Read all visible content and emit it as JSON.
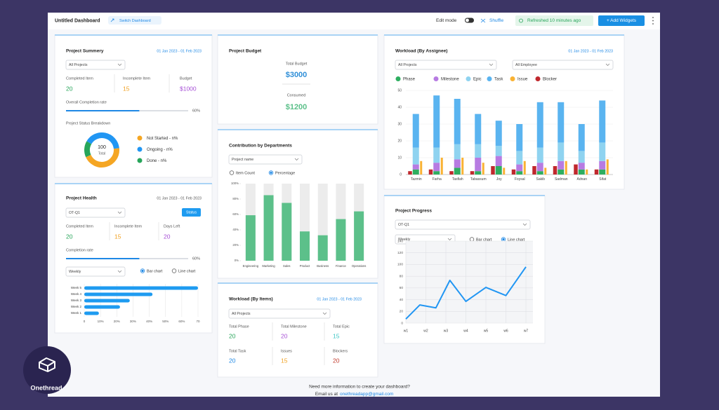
{
  "header": {
    "title": "Untitled Dashboard",
    "switch": "Switch Dashboard",
    "edit_mode": "Edit mode",
    "shuffle": "Shuffle",
    "refreshed": "Refreshed 10 minutes ago",
    "add_widgets": "+ Add Widgets"
  },
  "project_summary": {
    "title": "Project Summery",
    "date": "01 Jan 2023 - 01 Feb 2023",
    "filter": "All Projects",
    "stats": [
      {
        "label": "Completed Item",
        "value": 20,
        "color": "#27a55a"
      },
      {
        "label": "Incomplete Item",
        "value": 15,
        "color": "#f0a020"
      },
      {
        "label": "Budget",
        "value": "$1000",
        "color": "#a64fd6"
      }
    ],
    "completion_label": "Overall Completion rate",
    "completion": 60,
    "completion_text": "60%",
    "breakdown_title": "Project Status Breakdown",
    "total": 100,
    "total_label": "Total",
    "status": [
      {
        "name": "Not Started - n%",
        "color": "#f5a623",
        "value": 45
      },
      {
        "name": "Ongoing - n%",
        "color": "#2196f3",
        "value": 40
      },
      {
        "name": "Done - n%",
        "color": "#27a55a",
        "value": 15
      }
    ]
  },
  "project_health": {
    "title": "Project Health",
    "date": "01 Jan 2023 - 01 Feb 2023",
    "filter": "OT-Q1",
    "button": "Status",
    "stats": [
      {
        "label": "Completed Item",
        "value": 20,
        "color": "#27a55a"
      },
      {
        "label": "Incomplete Item",
        "value": 15,
        "color": "#f0a020"
      },
      {
        "label": "Days Left",
        "value": 20,
        "color": "#a64fd6"
      }
    ],
    "completion_label": "Completion rate",
    "completion": 60,
    "completion_text": "60%",
    "period": "Weekly",
    "chart_options": [
      "Bar chart",
      "Line chart"
    ],
    "chart": {
      "type": "bar",
      "orientation": "horizontal",
      "categories": [
        "Week 5",
        "Week 4",
        "Week 3",
        "Week 2",
        "Week 1"
      ],
      "values": [
        70,
        42,
        28,
        22,
        9
      ],
      "color": "#1e9bf0",
      "xlim": [
        0,
        70
      ],
      "xticks": [
        0,
        {
          "value": 10,
          "label": "10%"
        },
        {
          "value": 20,
          "label": "20%"
        },
        {
          "value": 30,
          "label": "30%"
        },
        {
          "value": 40,
          "label": "40%"
        },
        {
          "value": 50,
          "label": "50%"
        },
        {
          "value": 60,
          "label": "60%"
        },
        70
      ],
      "grid": true
    }
  },
  "project_budget": {
    "title": "Project Budget",
    "total_label": "Total Budget",
    "total": "$3000",
    "consumed_label": "Consumed",
    "consumed": "$1200"
  },
  "contribution": {
    "title": "Contribution by Departments",
    "filter": "Project name",
    "options": [
      "Item Count",
      "Percentage"
    ],
    "chart": {
      "type": "bar",
      "categories": [
        "Engineering",
        "Marketing",
        "Sales",
        "Product",
        "Business",
        "Finance",
        "Operations"
      ],
      "values": [
        59,
        85,
        75,
        38,
        33,
        54,
        64
      ],
      "color": "#5cc08a",
      "track_color": "#ececec",
      "ylim": [
        0,
        100
      ],
      "yticks": [
        {
          "value": 0,
          "label": "0%"
        },
        {
          "value": 20,
          "label": "20%"
        },
        {
          "value": 40,
          "label": "40%"
        },
        {
          "value": 60,
          "label": "60%"
        },
        {
          "value": 80,
          "label": "80%"
        },
        {
          "value": 100,
          "label": "100%"
        }
      ]
    }
  },
  "workload_items": {
    "title": "Workload (By Items)",
    "date": "01 Jan 2023 - 01 Feb 2023",
    "filter": "All Projects",
    "stats": [
      {
        "label": "Total Phase",
        "value": 20,
        "color": "#27a55a"
      },
      {
        "label": "Total Milestone",
        "value": 20,
        "color": "#a64fd6"
      },
      {
        "label": "Total Epic",
        "value": 15,
        "color": "#3cc6c4"
      },
      {
        "label": "Total Task",
        "value": 20,
        "color": "#1e88e5"
      },
      {
        "label": "Issues",
        "value": 15,
        "color": "#f0a020"
      },
      {
        "label": "Blockers",
        "value": 20,
        "color": "#c0392b"
      }
    ]
  },
  "workload_assignee": {
    "title": "Workload (By Assignee)",
    "date": "01 Jan 2023 - 01 Feb 2023",
    "filters": [
      "All Projects",
      "All Employee"
    ],
    "chart": {
      "type": "bar",
      "categories": [
        "Tazmin",
        "Farha",
        "Tasfiah",
        "Tabassum",
        "Joy",
        "Foysal",
        "Sakib",
        "Sadman",
        "Adnan",
        "Sifat"
      ],
      "series": [
        {
          "name": "Phase",
          "color": "#2eae60",
          "stacked": true,
          "values": [
            3,
            2,
            4,
            2,
            5,
            2,
            2,
            3,
            3,
            3
          ]
        },
        {
          "name": "Milestone",
          "color": "#b77be2",
          "stacked": true,
          "values": [
            3,
            5,
            5,
            8,
            6,
            4,
            5,
            5,
            4,
            5
          ]
        },
        {
          "name": "Epic",
          "color": "#8fd3f0",
          "stacked": true,
          "values": [
            10,
            9,
            9,
            8,
            6,
            8,
            9,
            11,
            7,
            11
          ]
        },
        {
          "name": "Task",
          "color": "#5ab4f0",
          "stacked": true,
          "values": [
            20,
            31,
            27,
            18,
            15,
            16,
            27,
            24,
            16,
            25
          ]
        },
        {
          "name": "Issue",
          "color": "#f9b233",
          "stacked": false,
          "values": [
            8,
            10,
            10,
            7,
            4,
            8,
            4,
            8,
            3,
            9
          ]
        },
        {
          "name": "Blocker",
          "color": "#c0282d",
          "stacked": false,
          "values": [
            2,
            3,
            2,
            2,
            5,
            3,
            5,
            5,
            6,
            3
          ]
        }
      ],
      "ylim": [
        0,
        50
      ],
      "yticks": [
        0,
        10,
        20,
        30,
        40,
        50
      ],
      "grid": true
    }
  },
  "project_progress": {
    "title": "Project Progress",
    "filter": "OT-Q1",
    "period": "Weekly",
    "chart_options": [
      "Bar chart",
      "Line chart"
    ],
    "chart": {
      "type": "line",
      "x": [
        1,
        1.7,
        2.5,
        3.2,
        4,
        5,
        6,
        7
      ],
      "values": [
        7,
        31,
        26,
        73,
        37,
        61,
        47,
        96
      ],
      "color": "#2196f3",
      "xlim": [
        1,
        7.35
      ],
      "xticks": [
        {
          "value": 1,
          "label": "w1"
        },
        {
          "value": 2,
          "label": "w2"
        },
        {
          "value": 3,
          "label": "w3"
        },
        {
          "value": 4,
          "label": "w4"
        },
        {
          "value": 5,
          "label": "w5"
        },
        {
          "value": 6,
          "label": "w6"
        },
        {
          "value": 7,
          "label": "w7"
        }
      ],
      "ylim": [
        0,
        140
      ],
      "yticks": [
        0,
        20,
        40,
        60,
        80,
        100,
        120,
        140
      ],
      "grid": true
    }
  },
  "footer": {
    "question": "Need more information to create your dashboard?",
    "email_prefix": "Email us at",
    "email": "onethreadapp@gmail.com"
  },
  "logo": {
    "name": "Onethread"
  }
}
